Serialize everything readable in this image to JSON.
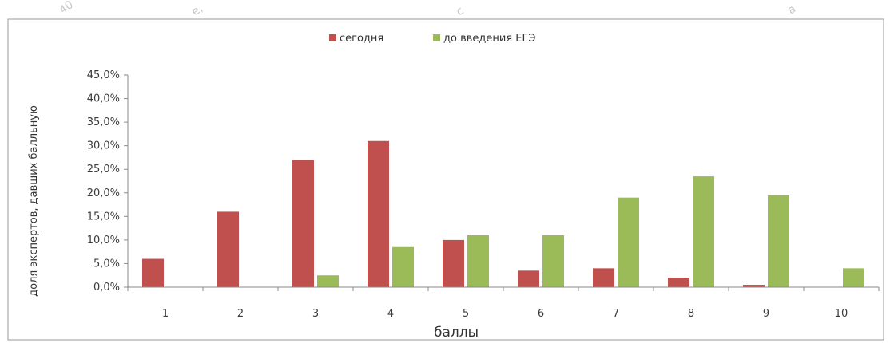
{
  "chart_data": {
    "type": "bar",
    "title": "",
    "xlabel": "баллы",
    "ylabel": "доля экспертов, давших балльную",
    "categories": [
      "1",
      "2",
      "3",
      "4",
      "5",
      "6",
      "7",
      "8",
      "9",
      "10"
    ],
    "series": [
      {
        "name": "сегодня",
        "color": "#c0504d",
        "values": [
          6.0,
          16.0,
          27.0,
          31.0,
          10.0,
          3.5,
          4.0,
          2.0,
          0.5,
          0.0
        ]
      },
      {
        "name": "до введения  ЕГЭ",
        "color": "#9bbb59",
        "values": [
          0.0,
          0.0,
          2.5,
          8.5,
          11.0,
          11.0,
          19.0,
          23.5,
          19.5,
          4.0
        ]
      }
    ],
    "ylim": [
      0,
      45
    ],
    "yticks": [
      "0,0%",
      "5,0%",
      "10,0%",
      "15,0%",
      "20,0%",
      "25,0%",
      "30,0%",
      "35,0%",
      "40,0%",
      "45,0%"
    ],
    "legend_position": "top-center",
    "grid": false
  }
}
